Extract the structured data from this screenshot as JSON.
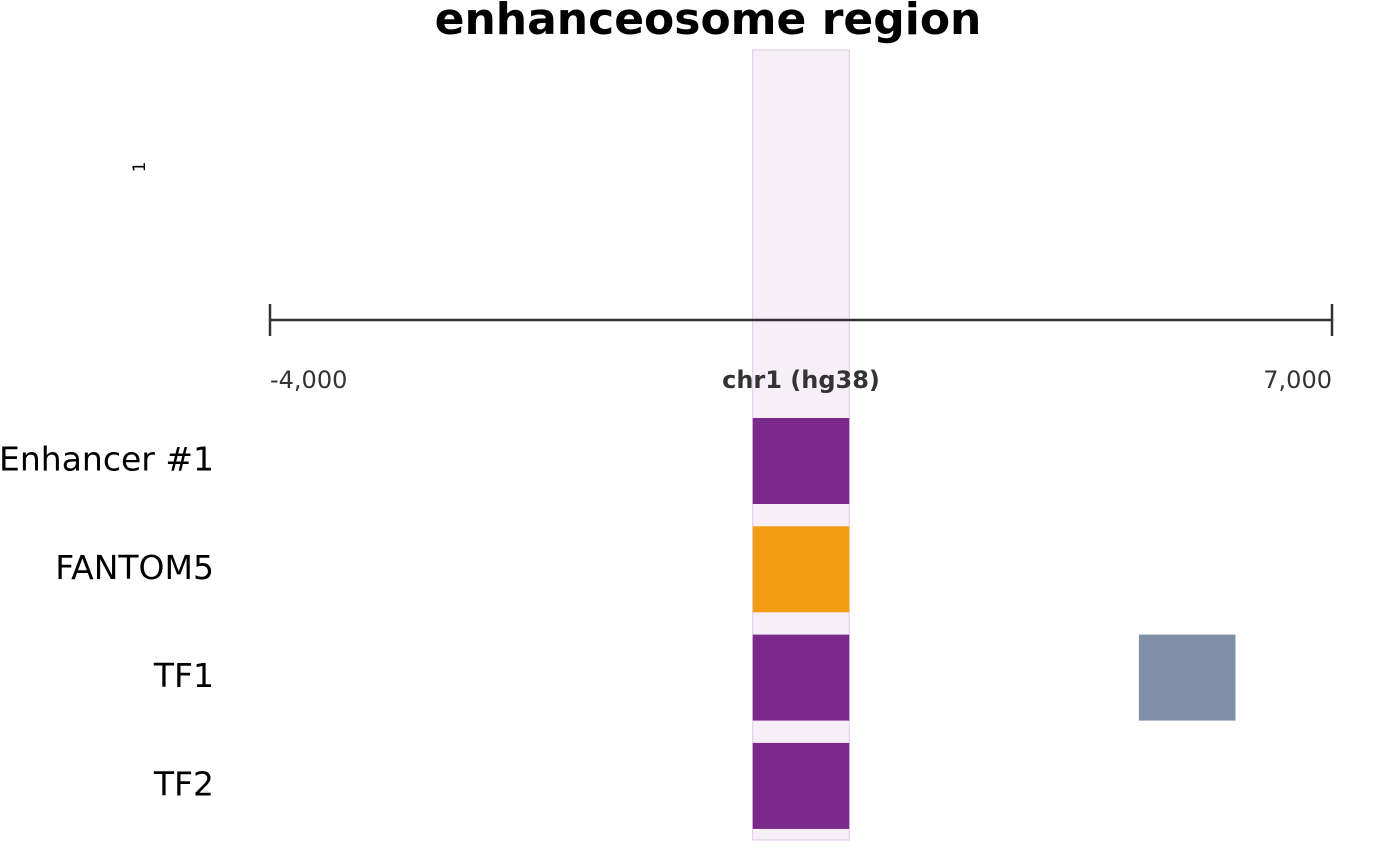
{
  "chart_data": {
    "type": "track",
    "title": "enhanceosome region",
    "side_label": "1",
    "axis_label": "chr1 (hg38)",
    "xlim": [
      -4000,
      7000
    ],
    "xticks": [
      {
        "value": -4000,
        "label": "-4,000"
      },
      {
        "value": 7000,
        "label": "7,000"
      }
    ],
    "highlight": [
      1000,
      2000
    ],
    "highlight_color": "#f6eff8",
    "tracks": [
      {
        "name": "Enhancer #1",
        "features": [
          {
            "start": 1000,
            "end": 2000,
            "color": "#7b2a8c"
          }
        ]
      },
      {
        "name": "FANTOM5",
        "features": [
          {
            "start": 1000,
            "end": 2000,
            "color": "#f39c12"
          }
        ]
      },
      {
        "name": "TF1",
        "features": [
          {
            "start": 1000,
            "end": 2000,
            "color": "#7b2a8c"
          },
          {
            "start": 5000,
            "end": 6000,
            "color": "#7f8fa6"
          }
        ]
      },
      {
        "name": "TF2",
        "features": [
          {
            "start": 1000,
            "end": 2000,
            "color": "#7b2a8c"
          }
        ]
      }
    ]
  }
}
